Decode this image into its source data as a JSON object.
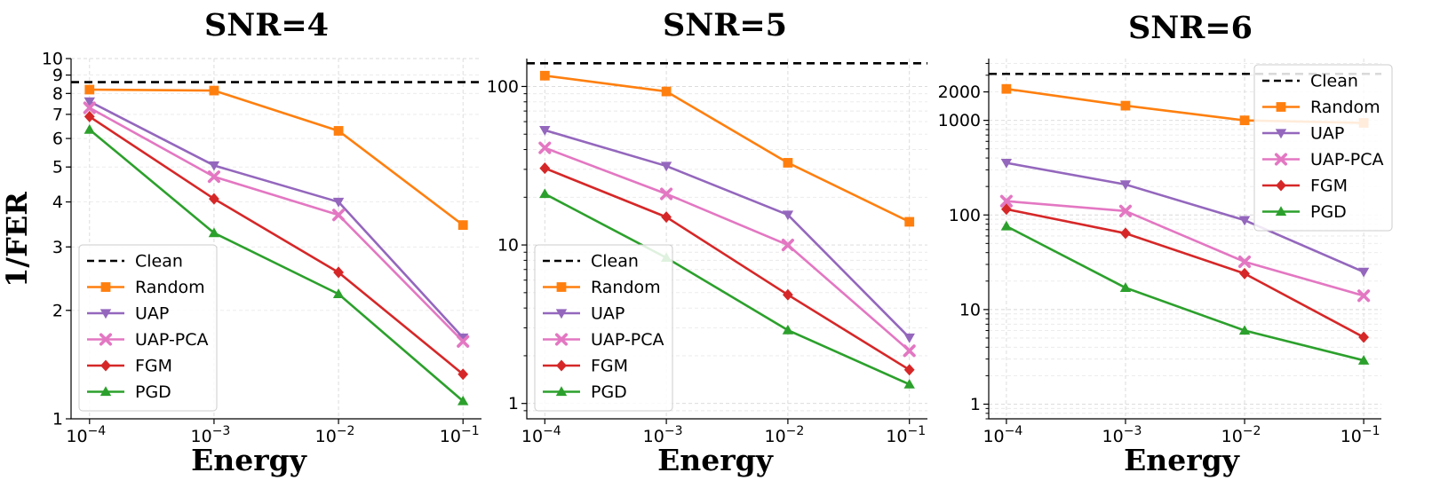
{
  "chart_data": [
    {
      "type": "line",
      "title": "SNR=4",
      "xlabel": "Energy",
      "ylabel": "1/FER",
      "x": [
        0.0001,
        0.001,
        0.01,
        0.1
      ],
      "xticks": [
        {
          "base": "10",
          "exp": "−4"
        },
        {
          "base": "10",
          "exp": "−3"
        },
        {
          "base": "10",
          "exp": "−2"
        },
        {
          "base": "10",
          "exp": "−1"
        }
      ],
      "yscale": "log",
      "ylim": [
        1,
        10
      ],
      "yticks": [
        {
          "value": 1,
          "label": "1"
        },
        {
          "value": 2,
          "label": "2"
        },
        {
          "value": 3,
          "label": "3"
        },
        {
          "value": 4,
          "label": "4"
        },
        {
          "value": 5,
          "label": "5"
        },
        {
          "value": 6,
          "label": "6"
        },
        {
          "value": 7,
          "label": "7"
        },
        {
          "value": 8,
          "label": "8"
        },
        {
          "value": 9,
          "label": "9"
        },
        {
          "value": 10,
          "label": "10"
        }
      ],
      "clean": 8.6,
      "legend_position": "lower-left",
      "series": [
        {
          "name": "Random",
          "values": [
            8.2,
            8.15,
            6.3,
            3.45
          ]
        },
        {
          "name": "UAP",
          "values": [
            7.6,
            5.05,
            4.0,
            1.68
          ]
        },
        {
          "name": "UAP-PCA",
          "values": [
            7.3,
            4.7,
            3.68,
            1.64
          ]
        },
        {
          "name": "FGM",
          "values": [
            6.9,
            4.08,
            2.55,
            1.33
          ]
        },
        {
          "name": "PGD",
          "values": [
            6.35,
            3.28,
            2.22,
            1.12
          ]
        }
      ]
    },
    {
      "type": "line",
      "title": "SNR=5",
      "xlabel": "Energy",
      "ylabel": "",
      "x": [
        0.0001,
        0.001,
        0.01,
        0.1
      ],
      "xticks": [
        {
          "base": "10",
          "exp": "−4"
        },
        {
          "base": "10",
          "exp": "−3"
        },
        {
          "base": "10",
          "exp": "−2"
        },
        {
          "base": "10",
          "exp": "−1"
        }
      ],
      "yscale": "log",
      "ylim": [
        0.8,
        150
      ],
      "yticks": [
        {
          "value": 1,
          "label": "1"
        },
        {
          "value": 10,
          "label": "10"
        },
        {
          "value": 100,
          "label": "100"
        }
      ],
      "clean": 140,
      "legend_position": "lower-left",
      "series": [
        {
          "name": "Random",
          "values": [
            117,
            93,
            33,
            14
          ]
        },
        {
          "name": "UAP",
          "values": [
            53,
            31.5,
            15.5,
            2.6
          ]
        },
        {
          "name": "UAP-PCA",
          "values": [
            41,
            21,
            10,
            2.15
          ]
        },
        {
          "name": "FGM",
          "values": [
            30.5,
            15,
            4.85,
            1.63
          ]
        },
        {
          "name": "PGD",
          "values": [
            21,
            8.3,
            2.9,
            1.32
          ]
        }
      ]
    },
    {
      "type": "line",
      "title": "SNR=6",
      "xlabel": "Energy",
      "ylabel": "",
      "x": [
        0.0001,
        0.001,
        0.01,
        0.1
      ],
      "xticks": [
        {
          "base": "10",
          "exp": "−4"
        },
        {
          "base": "10",
          "exp": "−3"
        },
        {
          "base": "10",
          "exp": "−2"
        },
        {
          "base": "10",
          "exp": "−1"
        }
      ],
      "yscale": "log",
      "ylim": [
        0.7,
        4500
      ],
      "yticks": [
        {
          "value": 1,
          "label": "1"
        },
        {
          "value": 10,
          "label": "10"
        },
        {
          "value": 100,
          "label": "100"
        },
        {
          "value": 1000,
          "label": "1000"
        },
        {
          "value": 2000,
          "label": "2000"
        }
      ],
      "clean": 3100,
      "legend_position": "upper-right",
      "series": [
        {
          "name": "Random",
          "values": [
            2150,
            1430,
            1000,
            940
          ]
        },
        {
          "name": "UAP",
          "values": [
            355,
            210,
            88,
            25
          ]
        },
        {
          "name": "UAP-PCA",
          "values": [
            140,
            110,
            32,
            14
          ]
        },
        {
          "name": "FGM",
          "values": [
            115,
            64,
            24,
            5.1
          ]
        },
        {
          "name": "PGD",
          "values": [
            76,
            17,
            6,
            2.9
          ]
        }
      ]
    }
  ],
  "legend": [
    {
      "name": "Clean",
      "style": "dashed",
      "marker": "none",
      "color": "#000000"
    },
    {
      "name": "Random",
      "style": "solid",
      "marker": "square",
      "color": "#ff7f0e"
    },
    {
      "name": "UAP",
      "style": "solid",
      "marker": "triangle-down",
      "color": "#9467bd"
    },
    {
      "name": "UAP-PCA",
      "style": "solid",
      "marker": "x",
      "color": "#e377c2"
    },
    {
      "name": "FGM",
      "style": "solid",
      "marker": "diamond",
      "color": "#d62728"
    },
    {
      "name": "PGD",
      "style": "solid",
      "marker": "triangle-up",
      "color": "#2ca02c"
    }
  ]
}
